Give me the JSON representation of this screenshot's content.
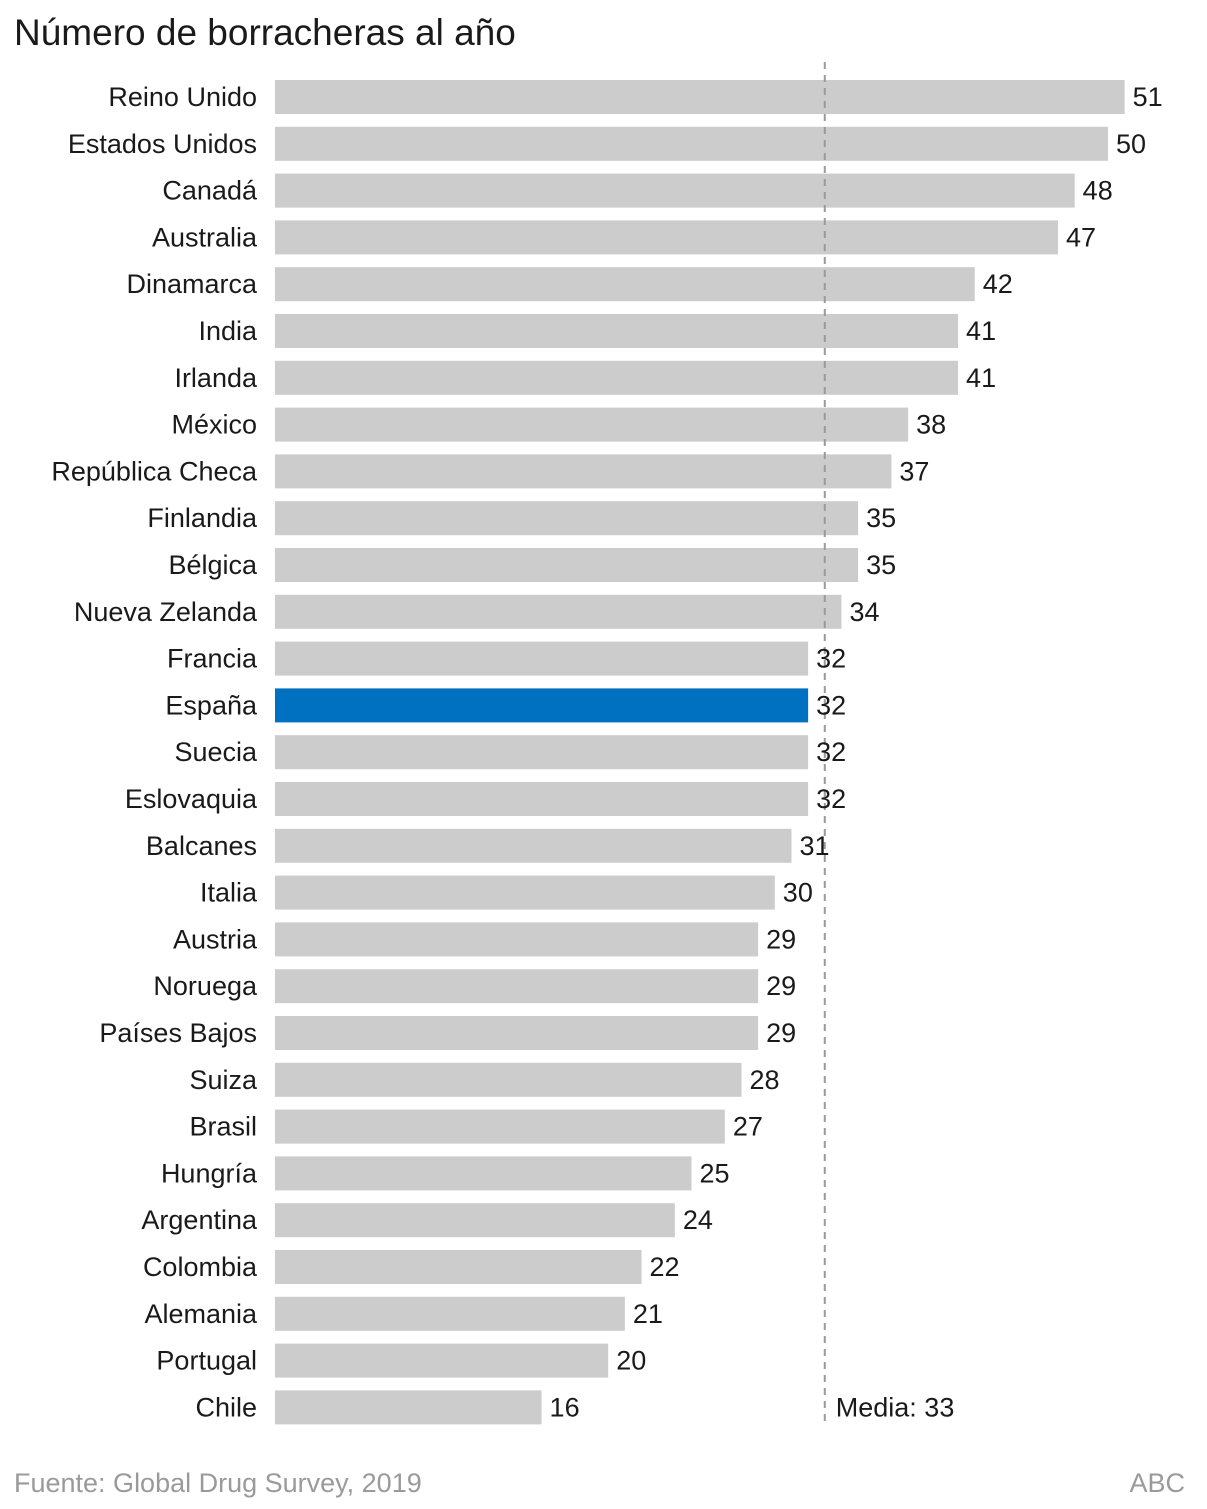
{
  "title": "Número de borracheras al año",
  "footer": {
    "source": "Fuente: Global Drug Survey, 2019",
    "brand": "ABC"
  },
  "colors": {
    "bar": "#cccccc",
    "highlight": "#0071c1",
    "reference": "#9a9a9a"
  },
  "chart_data": {
    "type": "bar",
    "orientation": "horizontal",
    "title": "Número de borracheras al año",
    "categories": [
      "Reino Unido",
      "Estados Unidos",
      "Canadá",
      "Australia",
      "Dinamarca",
      "India",
      "Irlanda",
      "México",
      "República Checa",
      "Finlandia",
      "Bélgica",
      "Nueva Zelanda",
      "Francia",
      "España",
      "Suecia",
      "Eslovaquia",
      "Balcanes",
      "Italia",
      "Austria",
      "Noruega",
      "Países Bajos",
      "Suiza",
      "Brasil",
      "Hungría",
      "Argentina",
      "Colombia",
      "Alemania",
      "Portugal",
      "Chile"
    ],
    "values": [
      51,
      50,
      48,
      47,
      42,
      41,
      41,
      38,
      37,
      35,
      35,
      34,
      32,
      32,
      32,
      32,
      31,
      30,
      29,
      29,
      29,
      28,
      27,
      25,
      24,
      22,
      21,
      20,
      16
    ],
    "highlight": "España",
    "reference_line": {
      "value": 33,
      "label": "Media: 33",
      "style": "dashed"
    },
    "xlim": [
      0,
      51
    ],
    "grid": false,
    "legend": "none"
  }
}
